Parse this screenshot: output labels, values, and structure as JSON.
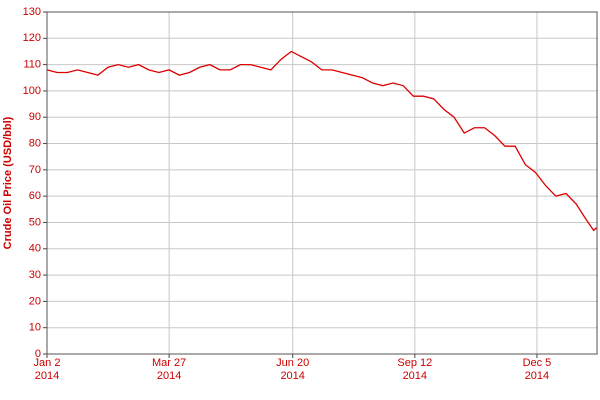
{
  "chart_data": {
    "type": "line",
    "y_label": "Crude Oil Price (USD/bbl)",
    "x": [
      "2014-01-02",
      "2014-01-09",
      "2014-01-16",
      "2014-01-23",
      "2014-01-30",
      "2014-02-06",
      "2014-02-13",
      "2014-02-20",
      "2014-02-27",
      "2014-03-06",
      "2014-03-13",
      "2014-03-20",
      "2014-03-27",
      "2014-04-03",
      "2014-04-10",
      "2014-04-17",
      "2014-04-24",
      "2014-05-01",
      "2014-05-08",
      "2014-05-15",
      "2014-05-22",
      "2014-05-29",
      "2014-06-05",
      "2014-06-12",
      "2014-06-19",
      "2014-06-26",
      "2014-07-03",
      "2014-07-10",
      "2014-07-17",
      "2014-07-24",
      "2014-07-31",
      "2014-08-07",
      "2014-08-14",
      "2014-08-21",
      "2014-08-28",
      "2014-09-04",
      "2014-09-11",
      "2014-09-18",
      "2014-09-25",
      "2014-10-02",
      "2014-10-09",
      "2014-10-16",
      "2014-10-23",
      "2014-10-30",
      "2014-11-06",
      "2014-11-13",
      "2014-11-20",
      "2014-11-27",
      "2014-12-04",
      "2014-12-11",
      "2014-12-18",
      "2014-12-25",
      "2015-01-01",
      "2015-01-08",
      "2015-01-13",
      "2015-01-15"
    ],
    "series": [
      {
        "name": "Crude Oil Price",
        "color": "#dd0000",
        "values": [
          108,
          107,
          107,
          108,
          107,
          106,
          109,
          110,
          109,
          110,
          108,
          107,
          108,
          106,
          107,
          109,
          110,
          108,
          108,
          110,
          110,
          109,
          108,
          112,
          115,
          113,
          111,
          108,
          108,
          107,
          106,
          105,
          103,
          102,
          103,
          102,
          98,
          98,
          97,
          93,
          90,
          84,
          86,
          86,
          83,
          79,
          79,
          72,
          69,
          64,
          60,
          61,
          57,
          51,
          47,
          48
        ]
      }
    ],
    "xlim": [
      "2014-01-02",
      "2015-01-16"
    ],
    "xticks": [
      {
        "value": "2014-01-02",
        "label": "Jan 2\n2014"
      },
      {
        "value": "2014-03-27",
        "label": "Mar 27\n2014"
      },
      {
        "value": "2014-06-20",
        "label": "Jun 20\n2014"
      },
      {
        "value": "2014-09-12",
        "label": "Sep 12\n2014"
      },
      {
        "value": "2014-12-05",
        "label": "Dec 5\n2014"
      }
    ],
    "ylim": [
      0,
      130
    ],
    "yticks": [
      0,
      10,
      20,
      30,
      40,
      50,
      60,
      70,
      80,
      90,
      100,
      110,
      120,
      130
    ],
    "grid": true
  }
}
